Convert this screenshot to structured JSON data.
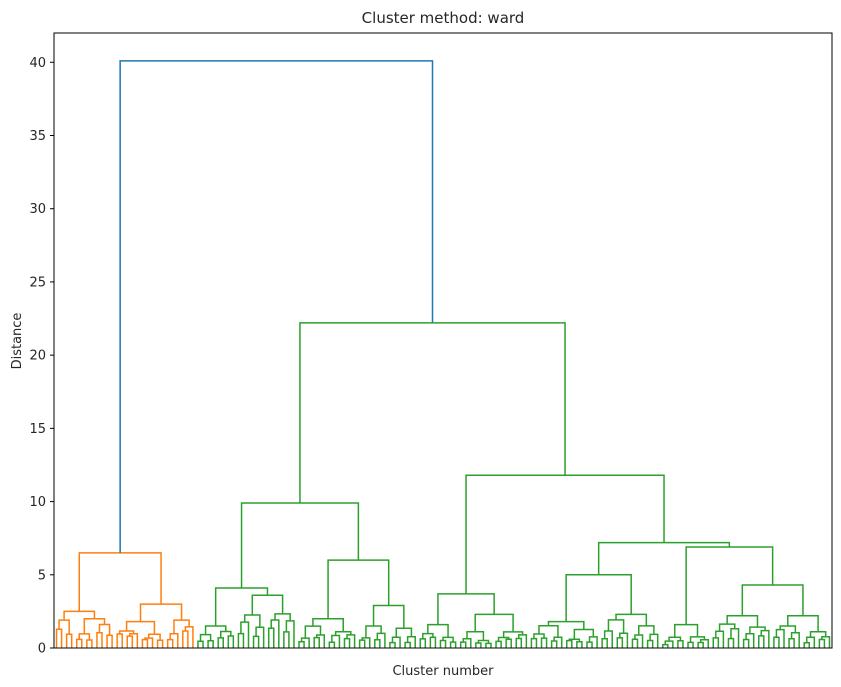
{
  "chart_data": {
    "type": "dendrogram",
    "title": "Cluster method: ward",
    "xlabel": "Cluster number",
    "ylabel": "Distance",
    "ylim": [
      0,
      42
    ],
    "yticks": [
      0,
      5,
      10,
      15,
      20,
      25,
      30,
      35,
      40
    ],
    "x_ticks_shown": false,
    "grid": false,
    "colors": {
      "root": "#1f77b4",
      "cluster_1": "#ff7f0e",
      "cluster_2": "#2ca02c"
    },
    "merges": [
      {
        "id": "root",
        "height": 40.1,
        "children": [
          "A",
          "B"
        ],
        "color": "root"
      },
      {
        "id": "A",
        "height": 6.5,
        "children": [
          "A1",
          "A2"
        ],
        "color": "cluster_1"
      },
      {
        "id": "A1",
        "height": 2.5,
        "children": [
          "A1a",
          "A1b"
        ],
        "color": "cluster_1"
      },
      {
        "id": "A2",
        "height": 3.0,
        "children": [
          "A2a",
          "A2b"
        ],
        "color": "cluster_1"
      },
      {
        "id": "B",
        "height": 22.2,
        "children": [
          "B1",
          "B2"
        ],
        "color": "cluster_2"
      },
      {
        "id": "B1",
        "height": 9.9,
        "children": [
          "B1a",
          "B1b"
        ],
        "color": "cluster_2"
      },
      {
        "id": "B1a",
        "height": 4.1,
        "children": [
          "B1a1",
          "B1a2"
        ],
        "color": "cluster_2"
      },
      {
        "id": "B1b",
        "height": 6.0,
        "children": [
          "B1b1",
          "B1b2"
        ],
        "color": "cluster_2"
      },
      {
        "id": "B2",
        "height": 11.8,
        "children": [
          "B2a",
          "B2b"
        ],
        "color": "cluster_2"
      },
      {
        "id": "B2a",
        "height": 3.7,
        "children": [
          "B2a1",
          "B2a2"
        ],
        "color": "cluster_2"
      },
      {
        "id": "B2b",
        "height": 7.2,
        "children": [
          "B2b1",
          "B2b2"
        ],
        "color": "cluster_2"
      },
      {
        "id": "B2b1",
        "height": 5.0,
        "children": [
          "B2b1a",
          "B2b1b"
        ],
        "color": "cluster_2"
      },
      {
        "id": "B2b2",
        "height": 6.9,
        "children": [
          "B2b2a",
          "B2b2b"
        ],
        "color": "cluster_2"
      },
      {
        "id": "B2b2b",
        "height": 4.3,
        "children": [
          "B2b2b1",
          "B2b2b2"
        ],
        "color": "cluster_2"
      }
    ]
  }
}
